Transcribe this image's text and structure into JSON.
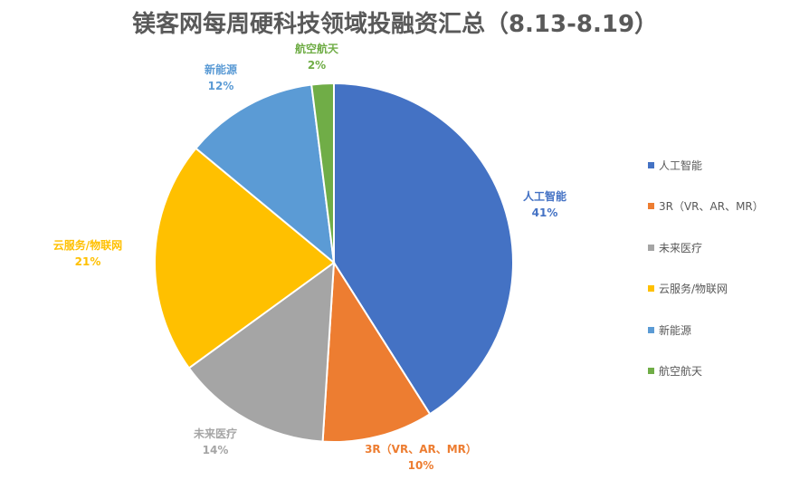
{
  "chart_data": {
    "type": "pie",
    "title": "镁客网每周硬科技领域投融资汇总（8.13-8.19）",
    "categories": [
      "人工智能",
      "3R（VR、AR、MR）",
      "未来医疗",
      "云服务/物联网",
      "新能源",
      "航空航天"
    ],
    "values": [
      41,
      10,
      14,
      21,
      12,
      2
    ],
    "data_labels": [
      "41%",
      "10%",
      "14%",
      "21%",
      "12%",
      "2%"
    ],
    "colors": [
      "#4472C4",
      "#ED7D31",
      "#A5A5A5",
      "#FFC000",
      "#5B9BD5",
      "#70AD47"
    ],
    "legend_position": "right",
    "start_angle": "12 o'clock, clockwise"
  }
}
